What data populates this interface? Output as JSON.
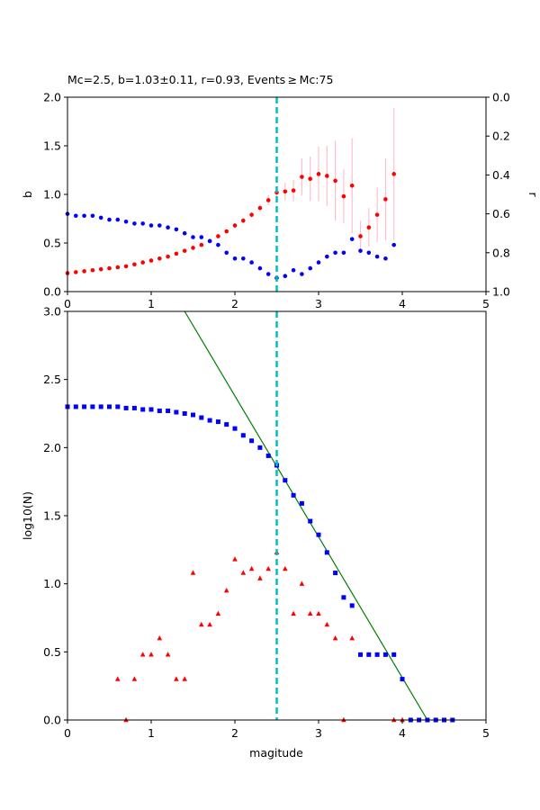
{
  "chart_data": [
    {
      "type": "scatter",
      "title": "Mc=2.5, b=1.03±0.11, r=0.93, Events ≥ Mc:75",
      "xlabel": "",
      "ylabel": "b",
      "ylabel_right": "r",
      "xlim": [
        0,
        5
      ],
      "ylim": [
        0,
        2.0
      ],
      "ylim_right": [
        1.0,
        0.0
      ],
      "x_ticks": [
        "0",
        "1",
        "2",
        "3",
        "4",
        "5"
      ],
      "y_ticks": [
        "0.0",
        "0.5",
        "1.0",
        "1.5",
        "2.0"
      ],
      "y_ticks_right": [
        "0.0",
        "0.2",
        "0.4",
        "0.6",
        "0.8",
        "1.0"
      ],
      "mc_line_x": 2.5,
      "colors": {
        "b": "#ff0000",
        "r": "#0000ff",
        "error": "#ffc0cb",
        "mc": "#00bfbf"
      },
      "series": [
        {
          "axis": "left",
          "color": "red",
          "x": [
            0.0,
            0.1,
            0.2,
            0.3,
            0.4,
            0.5,
            0.6,
            0.7,
            0.8,
            0.9,
            1.0,
            1.1,
            1.2,
            1.3,
            1.4,
            1.5,
            1.6,
            1.7,
            1.8,
            1.9,
            2.0,
            2.1,
            2.2,
            2.3,
            2.4,
            2.5,
            2.6,
            2.7,
            2.8,
            2.9,
            3.0,
            3.1,
            3.2,
            3.3,
            3.4,
            3.5,
            3.6,
            3.7,
            3.8,
            3.9
          ],
          "values": [
            0.19,
            0.2,
            0.21,
            0.22,
            0.23,
            0.24,
            0.25,
            0.26,
            0.28,
            0.3,
            0.32,
            0.34,
            0.36,
            0.39,
            0.42,
            0.45,
            0.48,
            0.52,
            0.57,
            0.62,
            0.68,
            0.73,
            0.79,
            0.86,
            0.94,
            1.02,
            1.03,
            1.04,
            1.18,
            1.16,
            1.21,
            1.19,
            1.14,
            0.98,
            1.09,
            0.57,
            0.66,
            0.79,
            0.95,
            1.21
          ],
          "errors": [
            0.01,
            0.01,
            0.01,
            0.01,
            0.01,
            0.01,
            0.01,
            0.01,
            0.01,
            0.01,
            0.01,
            0.01,
            0.01,
            0.01,
            0.01,
            0.02,
            0.02,
            0.02,
            0.02,
            0.02,
            0.03,
            0.03,
            0.03,
            0.04,
            0.05,
            0.06,
            0.09,
            0.11,
            0.19,
            0.23,
            0.28,
            0.31,
            0.41,
            0.28,
            0.49,
            0.16,
            0.2,
            0.28,
            0.42,
            0.68
          ]
        },
        {
          "axis": "right",
          "color": "blue",
          "x": [
            0.0,
            0.1,
            0.2,
            0.3,
            0.4,
            0.5,
            0.6,
            0.7,
            0.8,
            0.9,
            1.0,
            1.1,
            1.2,
            1.3,
            1.4,
            1.5,
            1.6,
            1.7,
            1.8,
            1.9,
            2.0,
            2.1,
            2.2,
            2.3,
            2.4,
            2.5,
            2.6,
            2.7,
            2.8,
            2.9,
            3.0,
            3.1,
            3.2,
            3.3,
            3.4,
            3.5,
            3.6,
            3.7,
            3.8,
            3.9
          ],
          "values": [
            0.6,
            0.61,
            0.61,
            0.61,
            0.62,
            0.63,
            0.63,
            0.64,
            0.65,
            0.65,
            0.66,
            0.66,
            0.67,
            0.68,
            0.7,
            0.72,
            0.72,
            0.74,
            0.76,
            0.8,
            0.83,
            0.83,
            0.85,
            0.88,
            0.91,
            0.93,
            0.92,
            0.89,
            0.91,
            0.88,
            0.85,
            0.82,
            0.8,
            0.8,
            0.73,
            0.79,
            0.8,
            0.82,
            0.83,
            0.76
          ]
        }
      ]
    },
    {
      "type": "scatter",
      "title": "",
      "xlabel": "magitude",
      "ylabel": "log10(N)",
      "xlim": [
        0,
        5
      ],
      "ylim": [
        0,
        3.0
      ],
      "x_ticks": [
        "0",
        "1",
        "2",
        "3",
        "4",
        "5"
      ],
      "y_ticks": [
        "0.0",
        "0.5",
        "1.0",
        "1.5",
        "2.0",
        "2.5",
        "3.0"
      ],
      "mc_line_x": 2.5,
      "fit_line": {
        "color": "green",
        "x": [
          1.4,
          4.3
        ],
        "values": [
          3.0,
          0.0
        ]
      },
      "colors": {
        "cumulative": "#0000ff",
        "noncumulative": "#ff0000",
        "fit": "#008000",
        "mc": "#00bfbf"
      },
      "series": [
        {
          "marker": "square",
          "color": "blue",
          "x": [
            0.0,
            0.1,
            0.2,
            0.3,
            0.4,
            0.5,
            0.6,
            0.7,
            0.8,
            0.9,
            1.0,
            1.1,
            1.2,
            1.3,
            1.4,
            1.5,
            1.6,
            1.7,
            1.8,
            1.9,
            2.0,
            2.1,
            2.2,
            2.3,
            2.4,
            2.5,
            2.6,
            2.7,
            2.8,
            2.9,
            3.0,
            3.1,
            3.2,
            3.3,
            3.4,
            3.5,
            3.6,
            3.7,
            3.8,
            3.9,
            4.0,
            4.1,
            4.2,
            4.3,
            4.4,
            4.5,
            4.6
          ],
          "values": [
            2.3,
            2.3,
            2.3,
            2.3,
            2.3,
            2.3,
            2.3,
            2.29,
            2.29,
            2.28,
            2.28,
            2.27,
            2.27,
            2.26,
            2.25,
            2.24,
            2.22,
            2.2,
            2.19,
            2.17,
            2.14,
            2.09,
            2.05,
            2.0,
            1.94,
            1.87,
            1.76,
            1.65,
            1.59,
            1.46,
            1.36,
            1.23,
            1.08,
            0.9,
            0.84,
            0.48,
            0.48,
            0.48,
            0.48,
            0.48,
            0.3,
            0.0,
            0.0,
            0.0,
            0.0,
            0.0,
            0.0
          ]
        },
        {
          "marker": "triangle",
          "color": "red",
          "x": [
            0.6,
            0.7,
            0.8,
            0.9,
            1.0,
            1.1,
            1.2,
            1.3,
            1.4,
            1.5,
            1.6,
            1.7,
            1.8,
            1.9,
            2.0,
            2.1,
            2.2,
            2.3,
            2.4,
            2.5,
            2.6,
            2.7,
            2.8,
            2.9,
            3.0,
            3.1,
            3.2,
            3.3,
            3.4,
            3.9,
            4.0
          ],
          "values": [
            0.3,
            0.0,
            0.3,
            0.48,
            0.48,
            0.6,
            0.48,
            0.3,
            0.3,
            1.08,
            0.7,
            0.7,
            0.78,
            0.95,
            1.18,
            1.08,
            1.11,
            1.04,
            1.11,
            1.23,
            1.11,
            0.78,
            1.0,
            0.78,
            0.78,
            0.7,
            0.6,
            0.0,
            0.6,
            0.0,
            0.0
          ]
        }
      ]
    }
  ]
}
